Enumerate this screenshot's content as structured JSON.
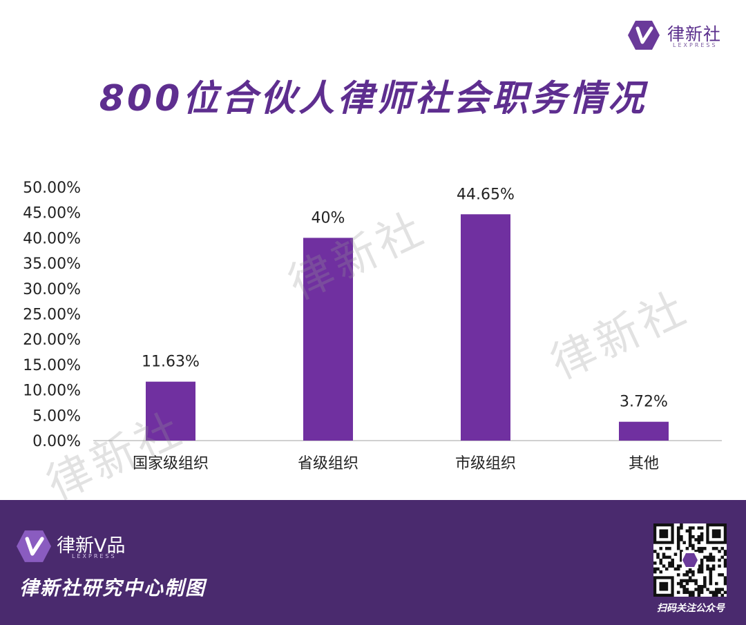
{
  "brand": {
    "name": "律新社",
    "sub": "LEXPRESS",
    "product": "律新V品",
    "accent": "#7030a0",
    "footer_bg": "#4a2a6e"
  },
  "watermark_text": "律新社",
  "chart_data": {
    "type": "bar",
    "title": "800位合伙人律师社会职务情况",
    "categories": [
      "国家级组织",
      "省级组织",
      "市级组织",
      "其他"
    ],
    "values": [
      11.63,
      40,
      44.65,
      3.72
    ],
    "data_labels": [
      "11.63%",
      "40%",
      "44.65%",
      "3.72%"
    ],
    "yticks": [
      "0.00%",
      "5.00%",
      "10.00%",
      "15.00%",
      "20.00%",
      "25.00%",
      "30.00%",
      "35.00%",
      "40.00%",
      "45.00%",
      "50.00%"
    ],
    "ylim": [
      0,
      50
    ],
    "grid": false,
    "bar_color": "#7030a0"
  },
  "footer": {
    "caption": "律新社研究中心制图",
    "qr_caption": "扫码关注公众号"
  }
}
